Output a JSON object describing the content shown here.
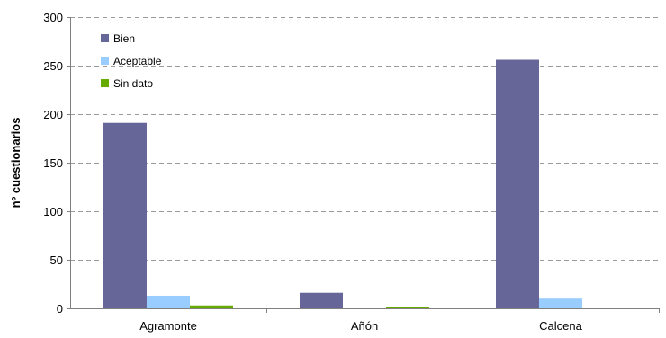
{
  "chart_data": {
    "type": "bar",
    "title": "",
    "xlabel": "",
    "ylabel": "nº cuestionarios",
    "categories": [
      "Agramonte",
      "Añón",
      "Calcena"
    ],
    "series": [
      {
        "name": "Bien",
        "color": "#666699",
        "values": [
          191,
          16,
          256
        ]
      },
      {
        "name": "Aceptable",
        "color": "#99ccff",
        "values": [
          13,
          0,
          10
        ]
      },
      {
        "name": "Sin dato",
        "color": "#66aa00",
        "values": [
          3,
          1,
          0
        ]
      }
    ],
    "ylim": [
      0,
      300
    ],
    "yticks": [
      0,
      50,
      100,
      150,
      200,
      250,
      300
    ],
    "grid": true,
    "legend_position": "top-left"
  }
}
